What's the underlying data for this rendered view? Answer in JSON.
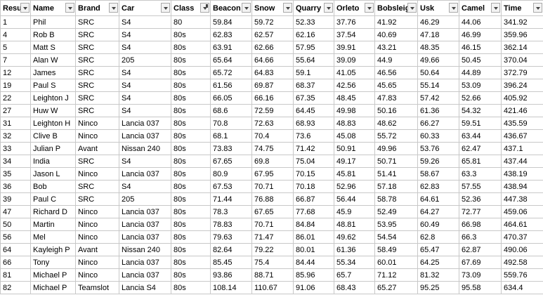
{
  "table": {
    "headers": [
      "Resu",
      "Name",
      "Brand",
      "Car",
      "Class",
      "Beacon",
      "Snow",
      "Quarry",
      "Orleto",
      "Bobsleig",
      "Usk",
      "Camel",
      "Time"
    ],
    "rows": [
      [
        1,
        "Phil",
        "SRC",
        "S4",
        80,
        59.84,
        59.72,
        52.33,
        37.76,
        41.92,
        46.29,
        44.06,
        341.92
      ],
      [
        4,
        "Rob B",
        "SRC",
        "S4",
        "80s",
        62.83,
        62.57,
        62.16,
        37.54,
        40.69,
        47.18,
        46.99,
        359.96
      ],
      [
        5,
        "Matt S",
        "SRC",
        "S4",
        "80s",
        63.91,
        62.66,
        57.95,
        39.91,
        43.21,
        48.35,
        46.15,
        362.14
      ],
      [
        7,
        "Alan W",
        "SRC",
        "205",
        "80s",
        65.64,
        64.66,
        55.64,
        39.09,
        44.9,
        49.66,
        50.45,
        370.04
      ],
      [
        12,
        "James",
        "SRC",
        "S4",
        "80s",
        65.72,
        64.83,
        59.1,
        41.05,
        46.56,
        50.64,
        44.89,
        372.79
      ],
      [
        19,
        "Paul S",
        "SRC",
        "S4",
        "80s",
        61.56,
        69.87,
        68.37,
        42.56,
        45.65,
        55.14,
        53.09,
        396.24
      ],
      [
        22,
        "Leighton J",
        "SRC",
        "S4",
        "80s",
        66.05,
        66.16,
        67.35,
        48.45,
        47.83,
        57.42,
        52.66,
        405.92
      ],
      [
        27,
        "Huw W",
        "SRC",
        "S4",
        "80s",
        68.6,
        72.59,
        64.45,
        49.98,
        50.16,
        61.36,
        54.32,
        421.46
      ],
      [
        31,
        "Leighton H",
        "Ninco",
        "Lancia 037",
        "80s",
        70.8,
        72.63,
        68.93,
        48.83,
        48.62,
        66.27,
        59.51,
        435.59
      ],
      [
        32,
        "Clive B",
        "Ninco",
        "Lancia 037",
        "80s",
        68.1,
        70.4,
        73.6,
        45.08,
        55.72,
        60.33,
        63.44,
        436.67
      ],
      [
        33,
        "Julian P",
        "Avant",
        "Nissan 240",
        "80s",
        73.83,
        74.75,
        71.42,
        50.91,
        49.96,
        53.76,
        62.47,
        437.1
      ],
      [
        34,
        "India",
        "SRC",
        "S4",
        "80s",
        67.65,
        69.8,
        75.04,
        49.17,
        50.71,
        59.26,
        65.81,
        437.44
      ],
      [
        35,
        "Jason L",
        "Ninco",
        "Lancia 037",
        "80s",
        80.9,
        67.95,
        70.15,
        45.81,
        51.41,
        58.67,
        63.3,
        438.19
      ],
      [
        36,
        "Bob",
        "SRC",
        "S4",
        "80s",
        67.53,
        70.71,
        70.18,
        52.96,
        57.18,
        62.83,
        57.55,
        438.94
      ],
      [
        39,
        "Paul C",
        "SRC",
        "205",
        "80s",
        71.44,
        76.88,
        66.87,
        56.44,
        58.78,
        64.61,
        52.36,
        447.38
      ],
      [
        47,
        "Richard D",
        "Ninco",
        "Lancia 037",
        "80s",
        78.3,
        67.65,
        77.68,
        45.9,
        52.49,
        64.27,
        72.77,
        459.06
      ],
      [
        50,
        "Martin",
        "Ninco",
        "Lancia 037",
        "80s",
        78.83,
        70.71,
        84.84,
        48.81,
        53.95,
        60.49,
        66.98,
        464.61
      ],
      [
        56,
        "Mel",
        "Ninco",
        "Lancia 037",
        "80s",
        79.63,
        71.47,
        86.01,
        49.62,
        54.54,
        62.8,
        66.3,
        470.37
      ],
      [
        64,
        "Kayleigh P",
        "Avant",
        "Nissan 240",
        "80s",
        82.64,
        79.22,
        80.01,
        61.36,
        58.49,
        65.47,
        62.87,
        490.06
      ],
      [
        66,
        "Tony",
        "Ninco",
        "Lancia 037",
        "80s",
        85.45,
        75.4,
        84.44,
        55.34,
        60.01,
        64.25,
        67.69,
        492.58
      ],
      [
        81,
        "Michael P",
        "Ninco",
        "Lancia 037",
        "80s",
        93.86,
        88.71,
        85.96,
        65.7,
        71.12,
        81.32,
        73.09,
        559.76
      ],
      [
        82,
        "Michael P",
        "Teamslot",
        "Lancia S4",
        "80s",
        108.14,
        110.67,
        91.06,
        68.43,
        65.27,
        95.25,
        95.58,
        634.4
      ]
    ]
  }
}
